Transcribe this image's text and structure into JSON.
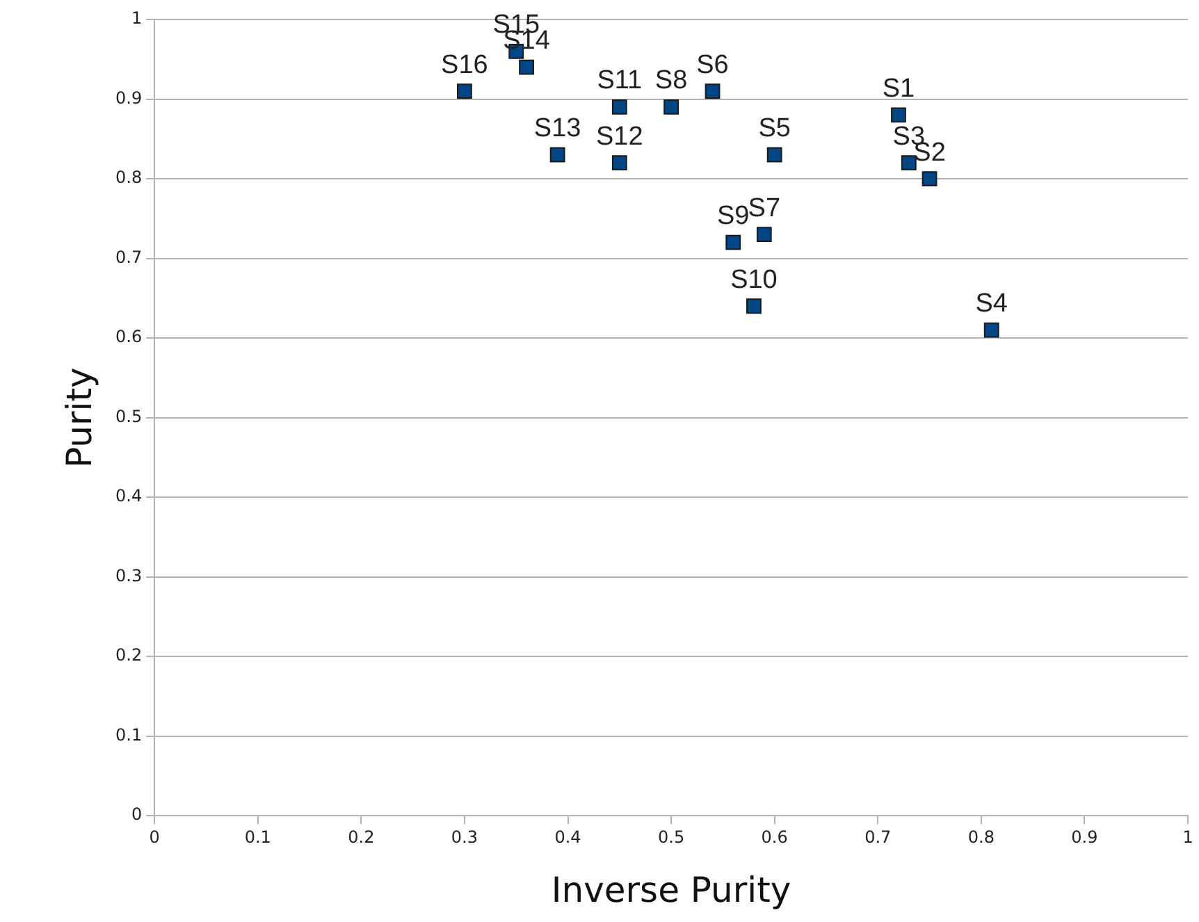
{
  "chart_data": {
    "type": "scatter",
    "xlabel": "Inverse Purity",
    "ylabel": "Purity",
    "xlim": [
      0,
      1
    ],
    "ylim": [
      0,
      1
    ],
    "xticks": [
      0,
      0.1,
      0.2,
      0.3,
      0.4,
      0.5,
      0.6,
      0.7,
      0.8,
      0.9,
      1
    ],
    "yticks": [
      0,
      0.1,
      0.2,
      0.3,
      0.4,
      0.5,
      0.6,
      0.7,
      0.8,
      0.9,
      1
    ],
    "grid": "y",
    "legend": false,
    "marker": "square",
    "series": [
      {
        "name": "S1",
        "color": "#004586",
        "x": [
          0.72
        ],
        "values": [
          0.88
        ]
      },
      {
        "name": "S2",
        "color": "#004586",
        "x": [
          0.75
        ],
        "values": [
          0.8
        ]
      },
      {
        "name": "S3",
        "color": "#004586",
        "x": [
          0.73
        ],
        "values": [
          0.82
        ]
      },
      {
        "name": "S4",
        "color": "#004586",
        "x": [
          0.81
        ],
        "values": [
          0.61
        ]
      },
      {
        "name": "S5",
        "color": "#004586",
        "x": [
          0.6
        ],
        "values": [
          0.83
        ]
      },
      {
        "name": "S6",
        "color": "#004586",
        "x": [
          0.54
        ],
        "values": [
          0.91
        ]
      },
      {
        "name": "S7",
        "color": "#004586",
        "x": [
          0.59
        ],
        "values": [
          0.73
        ]
      },
      {
        "name": "S8",
        "color": "#004586",
        "x": [
          0.5
        ],
        "values": [
          0.89
        ]
      },
      {
        "name": "S9",
        "color": "#004586",
        "x": [
          0.56
        ],
        "values": [
          0.72
        ]
      },
      {
        "name": "S10",
        "color": "#004586",
        "x": [
          0.58
        ],
        "values": [
          0.64
        ]
      },
      {
        "name": "S11",
        "color": "#004586",
        "x": [
          0.45
        ],
        "values": [
          0.89
        ]
      },
      {
        "name": "S12",
        "color": "#004586",
        "x": [
          0.45
        ],
        "values": [
          0.82
        ]
      },
      {
        "name": "S13",
        "color": "#004586",
        "x": [
          0.39
        ],
        "values": [
          0.83
        ]
      },
      {
        "name": "S14",
        "color": "#004586",
        "x": [
          0.36
        ],
        "values": [
          0.94
        ]
      },
      {
        "name": "S15",
        "color": "#004586",
        "x": [
          0.35
        ],
        "values": [
          0.96
        ]
      },
      {
        "name": "S16",
        "color": "#004586",
        "x": [
          0.3
        ],
        "values": [
          0.91
        ]
      }
    ]
  }
}
